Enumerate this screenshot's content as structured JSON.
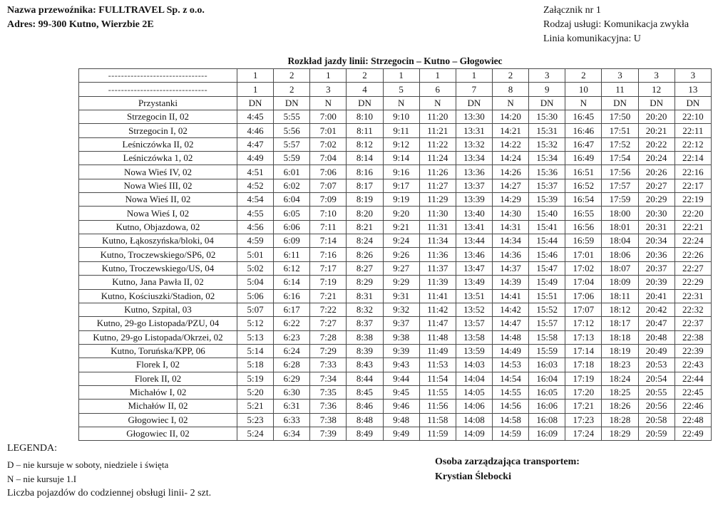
{
  "header_left": {
    "carrier": "Nazwa przewoźnika: FULLTRAVEL Sp. z o.o.",
    "address": "Adres: 99-300 Kutno, Wierzbie 2E"
  },
  "header_right": {
    "attachment": "Załącznik nr 1",
    "service_type": "Rodzaj usługi: Komunikacja zwykła",
    "line_number": "Linia komunikacyjna: U"
  },
  "table": {
    "title": "Rozkład jazdy linii: Strzegocin – Kutno – Głogowiec",
    "dashes": "-------------------------------",
    "stops_header": "Przystanki",
    "vehicle_numbers": [
      "1",
      "2",
      "1",
      "2",
      "1",
      "1",
      "1",
      "2",
      "3",
      "2",
      "3",
      "3",
      "3"
    ],
    "course_numbers": [
      "1",
      "2",
      "3",
      "4",
      "5",
      "6",
      "7",
      "8",
      "9",
      "10",
      "11",
      "12",
      "13"
    ],
    "run_symbols": [
      "DN",
      "DN",
      "N",
      "DN",
      "N",
      "N",
      "DN",
      "N",
      "DN",
      "N",
      "DN",
      "DN",
      "DN"
    ],
    "rows": [
      {
        "stop": "Strzegocin II, 02",
        "times": [
          "4:45",
          "5:55",
          "7:00",
          "8:10",
          "9:10",
          "11:20",
          "13:30",
          "14:20",
          "15:30",
          "16:45",
          "17:50",
          "20:20",
          "22:10"
        ]
      },
      {
        "stop": "Strzegocin I, 02",
        "times": [
          "4:46",
          "5:56",
          "7:01",
          "8:11",
          "9:11",
          "11:21",
          "13:31",
          "14:21",
          "15:31",
          "16:46",
          "17:51",
          "20:21",
          "22:11"
        ]
      },
      {
        "stop": "Leśniczówka II, 02",
        "times": [
          "4:47",
          "5:57",
          "7:02",
          "8:12",
          "9:12",
          "11:22",
          "13:32",
          "14:22",
          "15:32",
          "16:47",
          "17:52",
          "20:22",
          "22:12"
        ]
      },
      {
        "stop": "Leśniczówka 1, 02",
        "times": [
          "4:49",
          "5:59",
          "7:04",
          "8:14",
          "9:14",
          "11:24",
          "13:34",
          "14:24",
          "15:34",
          "16:49",
          "17:54",
          "20:24",
          "22:14"
        ]
      },
      {
        "stop": "Nowa Wieś IV, 02",
        "times": [
          "4:51",
          "6:01",
          "7:06",
          "8:16",
          "9:16",
          "11:26",
          "13:36",
          "14:26",
          "15:36",
          "16:51",
          "17:56",
          "20:26",
          "22:16"
        ]
      },
      {
        "stop": "Nowa Wieś III, 02",
        "times": [
          "4:52",
          "6:02",
          "7:07",
          "8:17",
          "9:17",
          "11:27",
          "13:37",
          "14:27",
          "15:37",
          "16:52",
          "17:57",
          "20:27",
          "22:17"
        ]
      },
      {
        "stop": "Nowa Wieś II, 02",
        "times": [
          "4:54",
          "6:04",
          "7:09",
          "8:19",
          "9:19",
          "11:29",
          "13:39",
          "14:29",
          "15:39",
          "16:54",
          "17:59",
          "20:29",
          "22:19"
        ]
      },
      {
        "stop": "Nowa Wieś I, 02",
        "times": [
          "4:55",
          "6:05",
          "7:10",
          "8:20",
          "9:20",
          "11:30",
          "13:40",
          "14:30",
          "15:40",
          "16:55",
          "18:00",
          "20:30",
          "22:20"
        ]
      },
      {
        "stop": "Kutno, Objazdowa, 02",
        "times": [
          "4:56",
          "6:06",
          "7:11",
          "8:21",
          "9:21",
          "11:31",
          "13:41",
          "14:31",
          "15:41",
          "16:56",
          "18:01",
          "20:31",
          "22:21"
        ]
      },
      {
        "stop": "Kutno, Łąkoszyńska/bloki, 04",
        "times": [
          "4:59",
          "6:09",
          "7:14",
          "8:24",
          "9:24",
          "11:34",
          "13:44",
          "14:34",
          "15:44",
          "16:59",
          "18:04",
          "20:34",
          "22:24"
        ]
      },
      {
        "stop": "Kutno, Troczewskiego/SP6, 02",
        "times": [
          "5:01",
          "6:11",
          "7:16",
          "8:26",
          "9:26",
          "11:36",
          "13:46",
          "14:36",
          "15:46",
          "17:01",
          "18:06",
          "20:36",
          "22:26"
        ]
      },
      {
        "stop": "Kutno, Troczewskiego/US, 04",
        "times": [
          "5:02",
          "6:12",
          "7:17",
          "8:27",
          "9:27",
          "11:37",
          "13:47",
          "14:37",
          "15:47",
          "17:02",
          "18:07",
          "20:37",
          "22:27"
        ]
      },
      {
        "stop": "Kutno, Jana Pawła II, 02",
        "times": [
          "5:04",
          "6:14",
          "7:19",
          "8:29",
          "9:29",
          "11:39",
          "13:49",
          "14:39",
          "15:49",
          "17:04",
          "18:09",
          "20:39",
          "22:29"
        ]
      },
      {
        "stop": "Kutno, Kościuszki/Stadion, 02",
        "times": [
          "5:06",
          "6:16",
          "7:21",
          "8:31",
          "9:31",
          "11:41",
          "13:51",
          "14:41",
          "15:51",
          "17:06",
          "18:11",
          "20:41",
          "22:31"
        ]
      },
      {
        "stop": "Kutno, Szpital, 03",
        "times": [
          "5:07",
          "6:17",
          "7:22",
          "8:32",
          "9:32",
          "11:42",
          "13:52",
          "14:42",
          "15:52",
          "17:07",
          "18:12",
          "20:42",
          "22:32"
        ]
      },
      {
        "stop": "Kutno, 29-go Listopada/PZU, 04",
        "times": [
          "5:12",
          "6:22",
          "7:27",
          "8:37",
          "9:37",
          "11:47",
          "13:57",
          "14:47",
          "15:57",
          "17:12",
          "18:17",
          "20:47",
          "22:37"
        ]
      },
      {
        "stop": "Kutno, 29-go Listopada/Okrzei, 02",
        "times": [
          "5:13",
          "6:23",
          "7:28",
          "8:38",
          "9:38",
          "11:48",
          "13:58",
          "14:48",
          "15:58",
          "17:13",
          "18:18",
          "20:48",
          "22:38"
        ]
      },
      {
        "stop": "Kutno, Toruńska/KPP, 06",
        "times": [
          "5:14",
          "6:24",
          "7:29",
          "8:39",
          "9:39",
          "11:49",
          "13:59",
          "14:49",
          "15:59",
          "17:14",
          "18:19",
          "20:49",
          "22:39"
        ]
      },
      {
        "stop": "Florek I, 02",
        "times": [
          "5:18",
          "6:28",
          "7:33",
          "8:43",
          "9:43",
          "11:53",
          "14:03",
          "14:53",
          "16:03",
          "17:18",
          "18:23",
          "20:53",
          "22:43"
        ]
      },
      {
        "stop": "Florek II, 02",
        "times": [
          "5:19",
          "6:29",
          "7:34",
          "8:44",
          "9:44",
          "11:54",
          "14:04",
          "14:54",
          "16:04",
          "17:19",
          "18:24",
          "20:54",
          "22:44"
        ]
      },
      {
        "stop": "Michałów I, 02",
        "times": [
          "5:20",
          "6:30",
          "7:35",
          "8:45",
          "9:45",
          "11:55",
          "14:05",
          "14:55",
          "16:05",
          "17:20",
          "18:25",
          "20:55",
          "22:45"
        ]
      },
      {
        "stop": "Michałów II, 02",
        "times": [
          "5:21",
          "6:31",
          "7:36",
          "8:46",
          "9:46",
          "11:56",
          "14:06",
          "14:56",
          "16:06",
          "17:21",
          "18:26",
          "20:56",
          "22:46"
        ]
      },
      {
        "stop": "Głogowiec I, 02",
        "times": [
          "5:23",
          "6:33",
          "7:38",
          "8:48",
          "9:48",
          "11:58",
          "14:08",
          "14:58",
          "16:08",
          "17:23",
          "18:28",
          "20:58",
          "22:48"
        ]
      },
      {
        "stop": "Głogowiec II, 02",
        "times": [
          "5:24",
          "6:34",
          "7:39",
          "8:49",
          "9:49",
          "11:59",
          "14:09",
          "14:59",
          "16:09",
          "17:24",
          "18:29",
          "20:59",
          "22:49"
        ]
      }
    ]
  },
  "legend": {
    "title": "LEGENDA:",
    "item_d": "D – nie kursuje w soboty, niedziele i święta",
    "item_n": "N – nie kursuje 1.I",
    "item_vehicles": "Liczba pojazdów do codziennej obsługi linii- 2 szt."
  },
  "manager": {
    "label": "Osoba zarządzająca transportem:",
    "name": "Krystian Ślebocki"
  }
}
